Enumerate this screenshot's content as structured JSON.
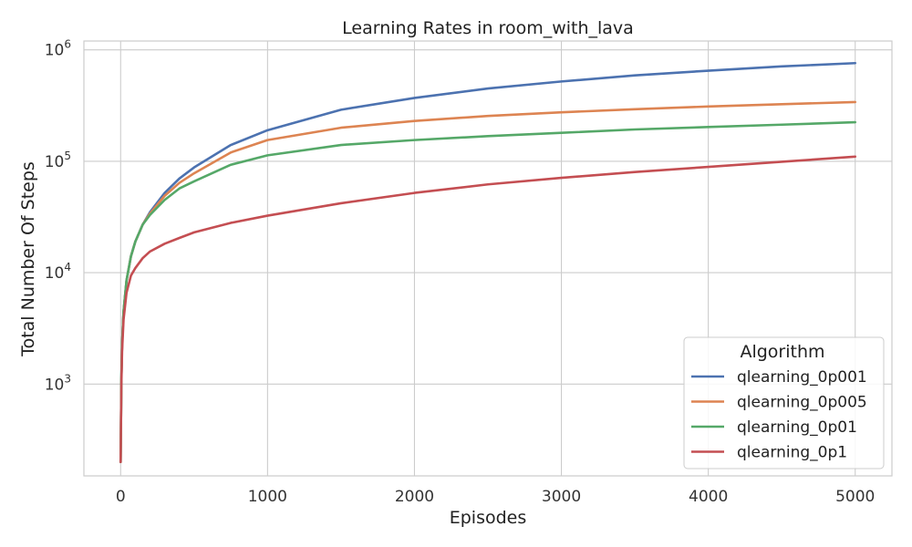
{
  "chart_data": {
    "type": "line",
    "title": "Learning Rates in room_with_lava",
    "xlabel": "Episodes",
    "ylabel": "Total Number Of Steps",
    "yscale": "log",
    "xlim": [
      -250,
      5250
    ],
    "ylim": [
      150,
      1200000
    ],
    "x_ticks": [
      {
        "value": 0,
        "label": "0"
      },
      {
        "value": 1000,
        "label": "1000"
      },
      {
        "value": 2000,
        "label": "2000"
      },
      {
        "value": 3000,
        "label": "3000"
      },
      {
        "value": 4000,
        "label": "4000"
      },
      {
        "value": 5000,
        "label": "5000"
      }
    ],
    "y_ticks": [
      {
        "value": 1000,
        "base": "10",
        "exp": "3"
      },
      {
        "value": 10000,
        "base": "10",
        "exp": "4"
      },
      {
        "value": 100000,
        "base": "10",
        "exp": "5"
      },
      {
        "value": 1000000,
        "base": "10",
        "exp": "6"
      }
    ],
    "grid": true,
    "legend": {
      "title": "Algorithm",
      "position": "bottom-right"
    },
    "x": [
      0,
      5,
      10,
      20,
      40,
      70,
      100,
      150,
      200,
      300,
      400,
      500,
      750,
      1000,
      1500,
      2000,
      2500,
      3000,
      3500,
      4000,
      4500,
      5000
    ],
    "series": [
      {
        "name": "qlearning_0p001",
        "color": "#4c72b0",
        "values": [
          200,
          1100,
          2300,
          4500,
          8500,
          14000,
          19000,
          27000,
          35000,
          52000,
          70000,
          88000,
          140000,
          190000,
          290000,
          370000,
          450000,
          520000,
          590000,
          650000,
          710000,
          760000
        ]
      },
      {
        "name": "qlearning_0p005",
        "color": "#dd8452",
        "values": [
          200,
          1100,
          2300,
          4500,
          8500,
          14000,
          19000,
          27000,
          34000,
          49000,
          64000,
          78000,
          120000,
          155000,
          200000,
          230000,
          255000,
          275000,
          293000,
          310000,
          325000,
          340000
        ]
      },
      {
        "name": "qlearning_0p01",
        "color": "#55a868",
        "values": [
          200,
          1100,
          2300,
          4500,
          8500,
          14000,
          19000,
          27000,
          33000,
          45000,
          57000,
          66000,
          93000,
          113000,
          140000,
          155000,
          168000,
          180000,
          193000,
          203000,
          213000,
          224000
        ]
      },
      {
        "name": "qlearning_0p1",
        "color": "#c44e52",
        "values": [
          200,
          1000,
          2000,
          3800,
          6600,
          9400,
          11000,
          13500,
          15500,
          18200,
          20500,
          23000,
          28000,
          32500,
          42000,
          52000,
          62000,
          71000,
          80000,
          89000,
          99000,
          110000
        ]
      }
    ]
  }
}
